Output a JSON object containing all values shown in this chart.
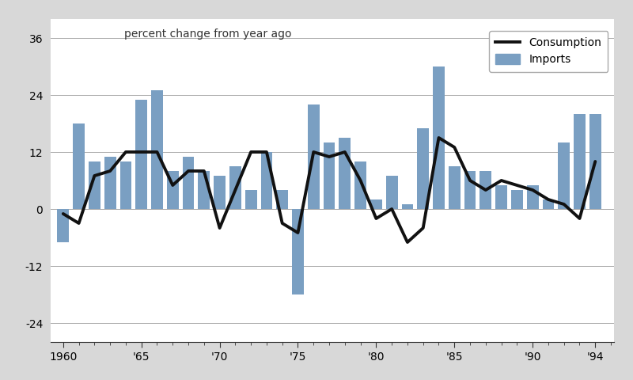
{
  "years": [
    1960,
    1961,
    1962,
    1963,
    1964,
    1965,
    1966,
    1967,
    1968,
    1969,
    1970,
    1971,
    1972,
    1973,
    1974,
    1975,
    1976,
    1977,
    1978,
    1979,
    1980,
    1981,
    1982,
    1983,
    1984,
    1985,
    1986,
    1987,
    1988,
    1989,
    1990,
    1991,
    1992,
    1993,
    1994
  ],
  "imports": [
    -7,
    18,
    10,
    11,
    10,
    23,
    25,
    8,
    11,
    8,
    7,
    9,
    4,
    12,
    4,
    -18,
    22,
    14,
    15,
    10,
    2,
    7,
    1,
    17,
    30,
    9,
    8,
    8,
    5,
    4,
    5,
    2,
    14,
    20,
    20
  ],
  "consumption": [
    -1,
    -3,
    7,
    8,
    12,
    12,
    12,
    5,
    8,
    8,
    -4,
    4,
    12,
    12,
    -3,
    -5,
    12,
    11,
    12,
    6,
    -2,
    0,
    -7,
    -4,
    15,
    13,
    6,
    4,
    6,
    5,
    4,
    2,
    1,
    -2,
    10
  ],
  "bar_color": "#7a9fc2",
  "line_color": "#111111",
  "bg_color": "#ffffff",
  "outer_bg": "#d8d8d8",
  "title": "percent change from year ago",
  "yticks": [
    -24,
    -12,
    0,
    12,
    24,
    36
  ],
  "xtick_labels": [
    "1960",
    "'65",
    "'70",
    "'75",
    "'80",
    "'85",
    "'90",
    "'94"
  ],
  "xtick_positions": [
    1960,
    1965,
    1970,
    1975,
    1980,
    1985,
    1990,
    1994
  ],
  "ylim": [
    -28,
    40
  ],
  "xlim": [
    1959.2,
    1995.2
  ]
}
